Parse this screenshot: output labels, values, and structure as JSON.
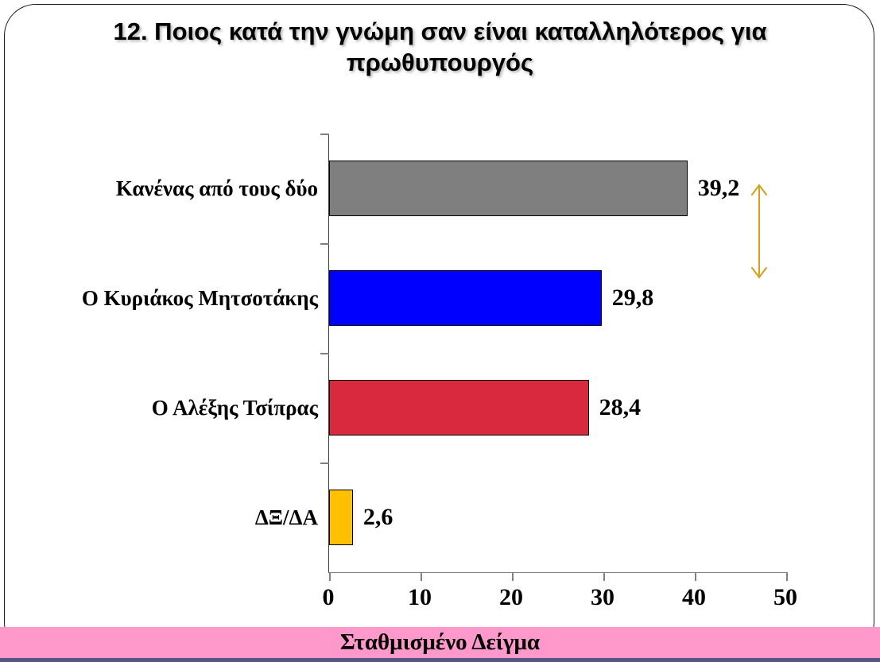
{
  "title": "12. Ποιος κατά την γνώμη σαν είναι καταλληλότερος για πρωθυπουργός",
  "footer": {
    "label": "Σταθμισμένο Δείγμα"
  },
  "colors": {
    "footer_bg": "#FF99CC",
    "bottom_strip": "#565685",
    "arrow": "#D4A017",
    "axis": "#808080",
    "bar_border": "#000000"
  },
  "chart_data": {
    "type": "bar",
    "orientation": "horizontal",
    "title": "12. Ποιος κατά την γνώμη σαν είναι καταλληλότερος για πρωθυπουργός",
    "categories": [
      "Κανένας από τους δύο",
      "Ο Κυριάκος Μητσοτάκης",
      "Ο Αλέξης Τσίπρας",
      "ΔΞ/ΔΑ"
    ],
    "values": [
      39.2,
      29.8,
      28.4,
      2.6
    ],
    "value_labels": [
      "39,2",
      "29,8",
      "28,4",
      "2,6"
    ],
    "bar_colors": [
      "#7F7F7F",
      "#0000FF",
      "#D8293F",
      "#FFC000"
    ],
    "xlim": [
      0,
      50
    ],
    "x_ticks": [
      0,
      10,
      20,
      30,
      40,
      50
    ],
    "x_tick_labels": [
      "0",
      "10",
      "20",
      "30",
      "40",
      "50"
    ],
    "xlabel": "",
    "ylabel": "",
    "grid": false,
    "legend": null,
    "annotations": [
      {
        "type": "double-headed-vertical-arrow",
        "near": "Κανένας από τους δύο value label",
        "color": "#D4A017"
      }
    ]
  }
}
